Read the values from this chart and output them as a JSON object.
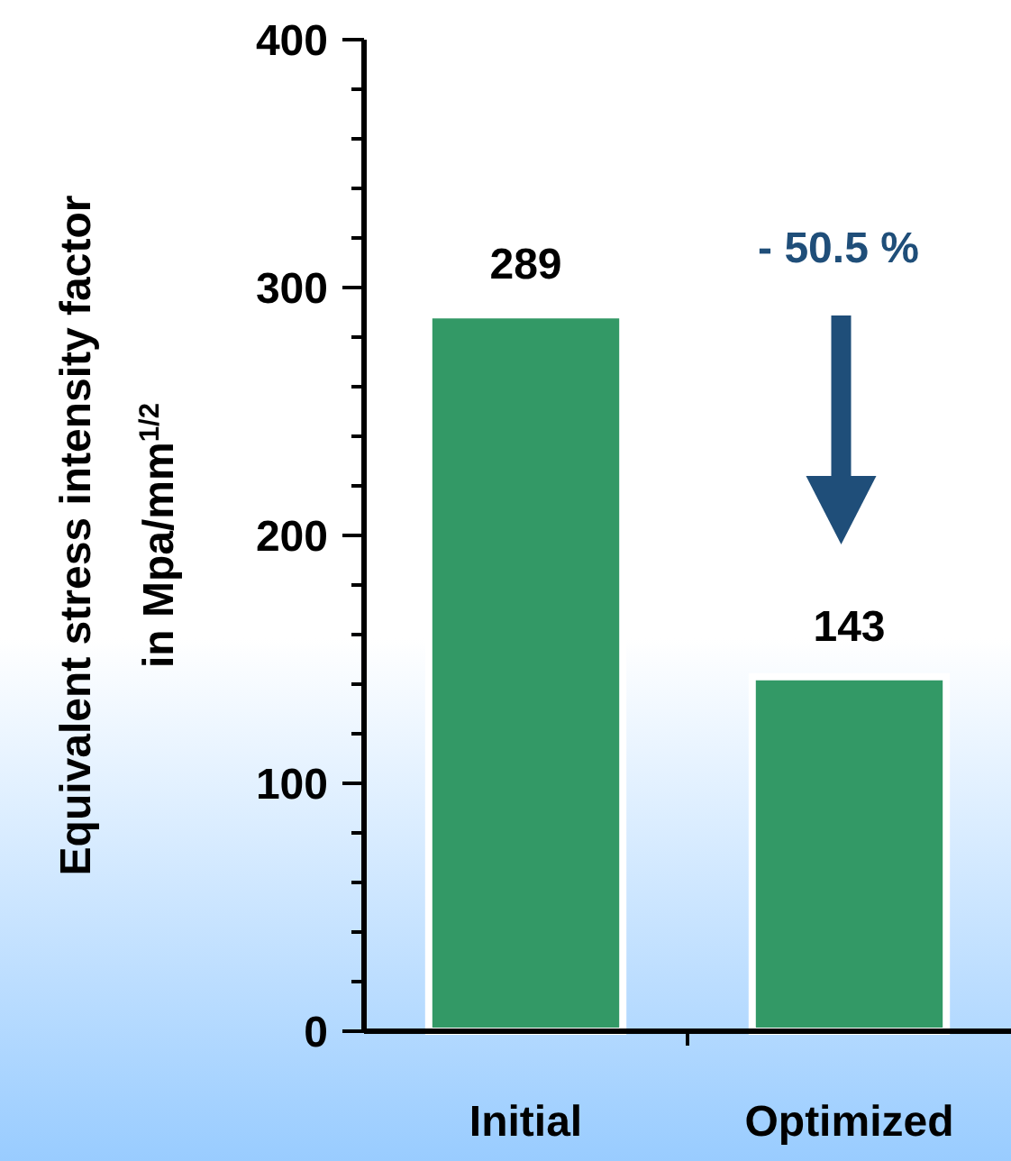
{
  "chart_data": {
    "type": "bar",
    "ylabel": "Equivalent stress intensity factor\nin Mpa/mm$^{1/2}$",
    "categories": [
      "Initial",
      "Optimized"
    ],
    "values": [
      289,
      143
    ],
    "color": "#339966",
    "data_labels": true,
    "ylim": [
      0,
      400
    ],
    "yticks": [
      0,
      {
        "value": 20,
        "label": null
      },
      {
        "value": 40,
        "label": null
      },
      {
        "value": 60,
        "label": null
      },
      {
        "value": 80,
        "label": null
      },
      100,
      {
        "value": 120,
        "label": null
      },
      {
        "value": 140,
        "label": null
      },
      {
        "value": 160,
        "label": null
      },
      {
        "value": 180,
        "label": null
      },
      200,
      {
        "value": 220,
        "label": null
      },
      {
        "value": 240,
        "label": null
      },
      {
        "value": 260,
        "label": null
      },
      {
        "value": 280,
        "label": null
      },
      300,
      {
        "value": 320,
        "label": null
      },
      {
        "value": 340,
        "label": null
      },
      {
        "value": 360,
        "label": null
      },
      {
        "value": 380,
        "label": null
      },
      400
    ],
    "annotations": [
      "- 50.5 %"
    ]
  }
}
